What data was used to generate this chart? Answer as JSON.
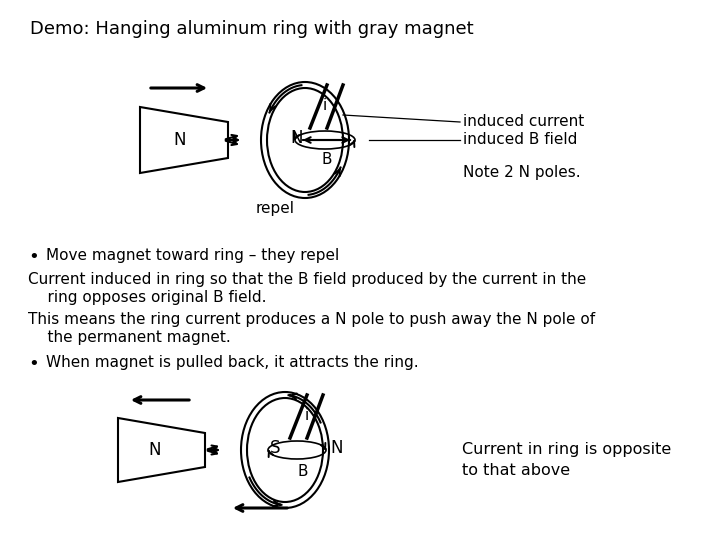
{
  "title": "Demo: Hanging aluminum ring with gray magnet",
  "bg_color": "#ffffff",
  "text_color": "#000000",
  "bullet1": "Move magnet toward ring – they repel",
  "para1_line1": "Current induced in ring so that the B field produced by the current in the",
  "para1_line2": "    ring opposes original B field.",
  "para2_line1": "This means the ring current produces a N pole to push away the N pole of",
  "para2_line2": "    the permanent magnet.",
  "bullet2": "When magnet is pulled back, it attracts the ring.",
  "side_note": "Current in ring is opposite\nto that above",
  "label_induced_current": "induced current",
  "label_induced_B": "induced B field",
  "label_note": "Note 2 N poles.",
  "label_repel": "repel",
  "label_N_magnet1": "N",
  "label_N_ring1": "N",
  "label_B1": "B",
  "label_i1": "i",
  "label_N_magnet2": "N",
  "label_S_ring2": "S",
  "label_N_ring2": "N",
  "label_B2": "B",
  "label_i2": "i",
  "fontsize_title": 13,
  "fontsize_body": 11,
  "fontsize_label": 11
}
